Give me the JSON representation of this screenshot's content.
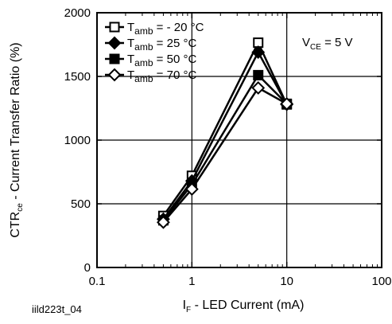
{
  "chart_data": {
    "type": "line",
    "x_scale": "log",
    "xlim": [
      0.1,
      100
    ],
    "ylim": [
      0,
      2000
    ],
    "grid": true,
    "legend_position": "top-left",
    "x_ticks": [
      0.1,
      1,
      10,
      100
    ],
    "x_tick_labels": [
      "0.1",
      "1",
      "10",
      "100"
    ],
    "y_ticks": [
      0,
      500,
      1000,
      1500,
      2000
    ],
    "y_tick_labels": [
      "0",
      "500",
      "1000",
      "1500",
      "2000"
    ],
    "xlabel": {
      "main": "I",
      "sub": "F",
      "rest": " - LED Current (mA)"
    },
    "ylabel": {
      "main": "CTR",
      "sub": "ce",
      "rest": " - Current Transfer Ratio (%)"
    },
    "annotation": {
      "main": "V",
      "sub": "CE",
      "rest": " = 5 V"
    },
    "footnote": "iild223t_04",
    "x": [
      0.5,
      1,
      5,
      10
    ],
    "series": [
      {
        "name": {
          "main": "T",
          "sub": "amb",
          "rest": " = - 20 °C"
        },
        "marker": "square-open",
        "values": [
          405,
          720,
          1765,
          1280
        ]
      },
      {
        "name": {
          "main": "T",
          "sub": "amb",
          "rest": " = 25 °C"
        },
        "marker": "diamond-filled",
        "values": [
          380,
          680,
          1690,
          1280
        ]
      },
      {
        "name": {
          "main": "T",
          "sub": "amb",
          "rest": " = 50 °C"
        },
        "marker": "square-filled",
        "values": [
          370,
          650,
          1510,
          1285
        ]
      },
      {
        "name": {
          "main": "T",
          "sub": "amb",
          "rest": " = 70 °C"
        },
        "marker": "diamond-open",
        "values": [
          355,
          615,
          1410,
          1285
        ]
      }
    ]
  }
}
